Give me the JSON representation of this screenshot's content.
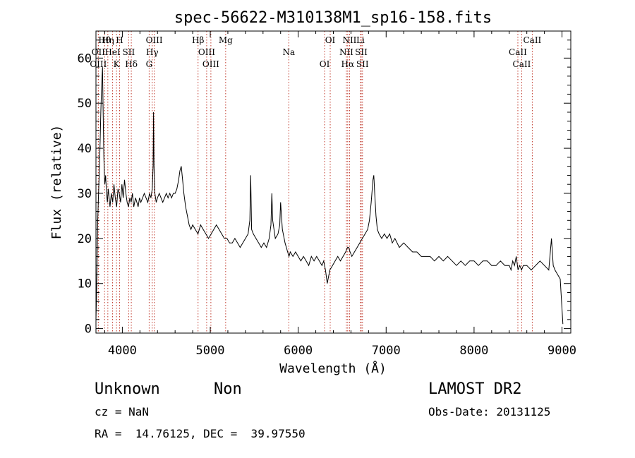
{
  "chart_data": {
    "type": "line",
    "title": "spec-56622-M310138M1_sp16-158.fits",
    "xlabel": "Wavelength (Å)",
    "ylabel": "Flux (relative)",
    "xlim": [
      3700,
      9100
    ],
    "ylim": [
      -1,
      66
    ],
    "xticks": [
      4000,
      5000,
      6000,
      7000,
      8000,
      9000
    ],
    "yticks": [
      0,
      10,
      20,
      30,
      40,
      50,
      60
    ],
    "grid": false,
    "legend": "none",
    "series": [
      {
        "x": [
          3700,
          3705,
          3712,
          3720,
          3730,
          3740,
          3748,
          3755,
          3762,
          3770,
          3775,
          3780,
          3790,
          3800,
          3810,
          3820,
          3830,
          3840,
          3850,
          3860,
          3875,
          3890,
          3905,
          3920,
          3935,
          3950,
          3965,
          3980,
          3995,
          4010,
          4025,
          4040,
          4055,
          4070,
          4085,
          4100,
          4115,
          4130,
          4150,
          4165,
          4180,
          4195,
          4210,
          4230,
          4250,
          4270,
          4290,
          4310,
          4325,
          4340,
          4350,
          4355,
          4360,
          4370,
          4385,
          4400,
          4420,
          4440,
          4460,
          4480,
          4500,
          4520,
          4540,
          4560,
          4580,
          4600,
          4620,
          4640,
          4655,
          4670,
          4685,
          4700,
          4720,
          4740,
          4760,
          4780,
          4800,
          4830,
          4860,
          4890,
          4920,
          4950,
          4980,
          5010,
          5040,
          5070,
          5100,
          5130,
          5160,
          5190,
          5220,
          5250,
          5280,
          5310,
          5340,
          5370,
          5400,
          5430,
          5450,
          5460,
          5470,
          5490,
          5520,
          5550,
          5580,
          5610,
          5640,
          5670,
          5690,
          5700,
          5710,
          5740,
          5770,
          5790,
          5800,
          5820,
          5850,
          5880,
          5895,
          5910,
          5940,
          5970,
          6000,
          6030,
          6060,
          6090,
          6120,
          6150,
          6180,
          6210,
          6240,
          6270,
          6290,
          6300,
          6310,
          6330,
          6360,
          6390,
          6420,
          6450,
          6480,
          6510,
          6540,
          6560,
          6575,
          6590,
          6610,
          6640,
          6670,
          6700,
          6730,
          6760,
          6790,
          6810,
          6830,
          6850,
          6860,
          6870,
          6885,
          6900,
          6920,
          6950,
          6980,
          7010,
          7040,
          7070,
          7100,
          7150,
          7200,
          7250,
          7300,
          7350,
          7400,
          7450,
          7500,
          7550,
          7600,
          7650,
          7700,
          7750,
          7800,
          7850,
          7900,
          7950,
          8000,
          8050,
          8100,
          8150,
          8200,
          8250,
          8300,
          8350,
          8400,
          8420,
          8440,
          8460,
          8480,
          8500,
          8520,
          8540,
          8560,
          8600,
          8650,
          8700,
          8750,
          8800,
          8850,
          8880,
          8900,
          8920,
          8950,
          8980,
          8995,
          9010
        ],
        "y": [
          2,
          6,
          14,
          24,
          30,
          36,
          42,
          48,
          52,
          56,
          58,
          50,
          38,
          32,
          34,
          30,
          28,
          31,
          29,
          27,
          30,
          28,
          32,
          29,
          27,
          31,
          30,
          28,
          32,
          29,
          33,
          30,
          28,
          27,
          29,
          28,
          30,
          27,
          29,
          28,
          27,
          29,
          28,
          29,
          30,
          29,
          28,
          30,
          29,
          31,
          36,
          48,
          36,
          30,
          28,
          29,
          30,
          29,
          28,
          29,
          30,
          29,
          30,
          29,
          30,
          30,
          31,
          33,
          35,
          36,
          33,
          30,
          27,
          25,
          23,
          22,
          23,
          22,
          21,
          23,
          22,
          21,
          20,
          21,
          22,
          23,
          22,
          21,
          20,
          20,
          19,
          19,
          20,
          19,
          18,
          19,
          20,
          21,
          24,
          34,
          22,
          21,
          20,
          19,
          18,
          19,
          18,
          20,
          23,
          30,
          24,
          20,
          21,
          23,
          28,
          22,
          19,
          17,
          16,
          17,
          16,
          17,
          16,
          15,
          16,
          15,
          14,
          16,
          15,
          16,
          15,
          14,
          15,
          14,
          13,
          10,
          13,
          14,
          15,
          16,
          15,
          16,
          17,
          18,
          18,
          17,
          16,
          17,
          18,
          19,
          20,
          21,
          22,
          24,
          28,
          33,
          34,
          30,
          25,
          22,
          21,
          20,
          21,
          20,
          21,
          19,
          20,
          18,
          19,
          18,
          17,
          17,
          16,
          16,
          16,
          15,
          16,
          15,
          16,
          15,
          14,
          15,
          14,
          15,
          15,
          14,
          15,
          15,
          14,
          14,
          15,
          14,
          14,
          13,
          15,
          14,
          16,
          13,
          14,
          13,
          14,
          14,
          13,
          14,
          15,
          14,
          13,
          20,
          14,
          13,
          12,
          11,
          6,
          1
        ]
      }
    ],
    "lines": [
      {
        "label": "Hθ",
        "x": 3798
      },
      {
        "label": "OII",
        "x": 3727
      },
      {
        "label": "OIII",
        "x": 3727
      },
      {
        "label": "Hη",
        "x": 3835
      },
      {
        "label": "HeI",
        "x": 3889
      },
      {
        "label": "K",
        "x": 3934
      },
      {
        "label": "H",
        "x": 3969
      },
      {
        "label": "SII",
        "x": 4072
      },
      {
        "label": "Hδ",
        "x": 4102
      },
      {
        "label": "OIII",
        "x": 4363
      },
      {
        "label": "Hγ",
        "x": 4340
      },
      {
        "label": "G",
        "x": 4305
      },
      {
        "label": "Hβ",
        "x": 4861
      },
      {
        "label": "OIII",
        "x": 4959
      },
      {
        "label": "OIII",
        "x": 5007
      },
      {
        "label": "Mg",
        "x": 5175
      },
      {
        "label": "Na",
        "x": 5893
      },
      {
        "label": "OI",
        "x": 6300
      },
      {
        "label": "OI",
        "x": 6364
      },
      {
        "label": "NII",
        "x": 6548
      },
      {
        "label": "Hα",
        "x": 6563
      },
      {
        "label": "NII",
        "x": 6584
      },
      {
        "label": "SII",
        "x": 6717
      },
      {
        "label": "SII",
        "x": 6731
      },
      {
        "label": "Li",
        "x": 6708
      },
      {
        "label": "CaII",
        "x": 8498
      },
      {
        "label": "CaII",
        "x": 8542
      },
      {
        "label": "CaII",
        "x": 8662
      }
    ]
  },
  "footer": {
    "class": "Unknown",
    "subclass": "Non",
    "survey": "LAMOST DR2",
    "cz": "cz = NaN",
    "obs_date": "Obs-Date: 20131125",
    "coords": "RA =  14.76125, DEC =  39.97550"
  }
}
